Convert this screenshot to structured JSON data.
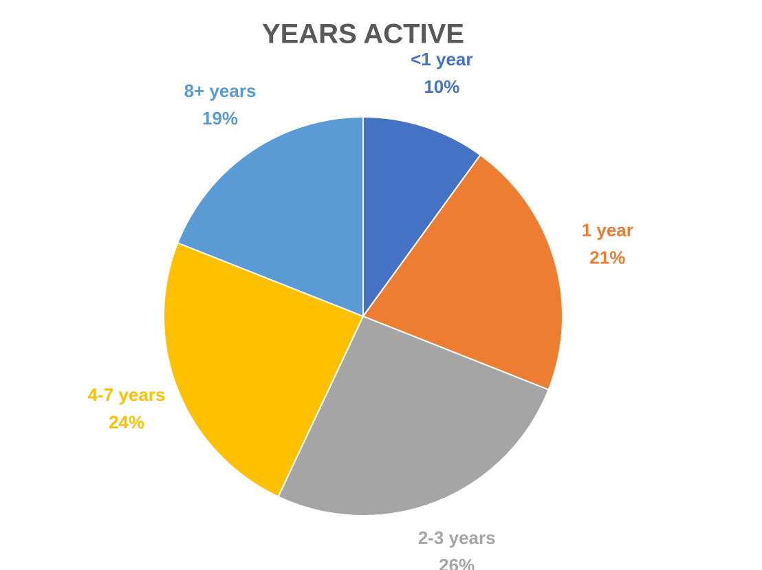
{
  "chart_data": {
    "type": "pie",
    "title": "YEARS ACTIVE",
    "categories": [
      "<1 year",
      "1 year",
      "2-3 years",
      "4-7 years",
      "8+ years"
    ],
    "values": [
      10,
      21,
      26,
      24,
      19
    ],
    "value_labels": [
      "10%",
      "21%",
      "26%",
      "24%",
      "19%"
    ],
    "colors": [
      "#4472c4",
      "#ed7d31",
      "#a5a5a5",
      "#ffc000",
      "#5b9bd5"
    ]
  }
}
